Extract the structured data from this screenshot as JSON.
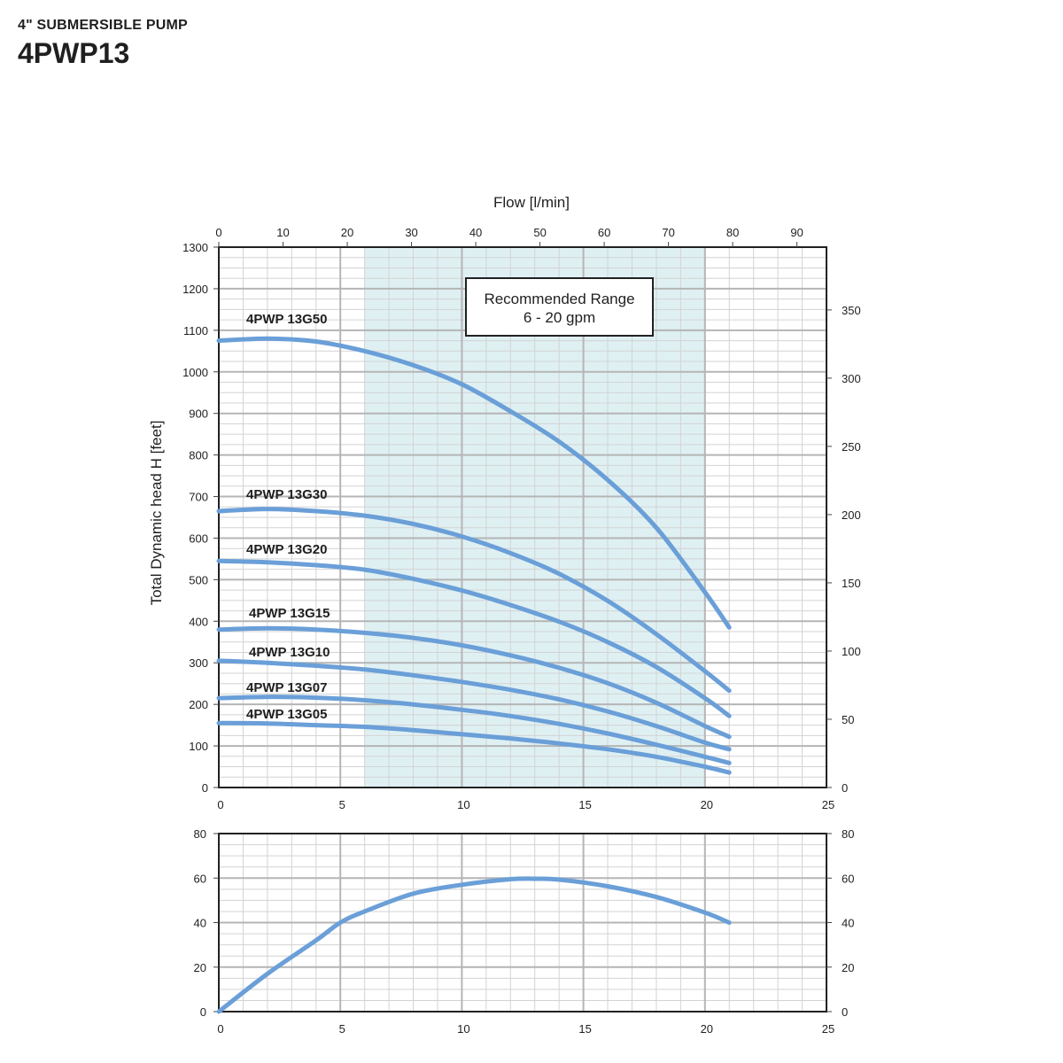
{
  "header": {
    "subtitle": "4\" SUBMERSIBLE PUMP",
    "title": "4PWP13"
  },
  "chart_data": [
    {
      "type": "line",
      "title": "",
      "xlabel": "",
      "ylabel": "Total Dynamic head H [feet]",
      "x2label": "Flow [l/min]",
      "xlim": [
        0,
        25
      ],
      "x_ticks": [
        0,
        5,
        10,
        15,
        20,
        25
      ],
      "ylim": [
        0,
        1300
      ],
      "y_ticks": [
        0,
        100,
        200,
        300,
        400,
        500,
        600,
        700,
        800,
        900,
        1000,
        1100,
        1200,
        1300
      ],
      "x2lim": [
        0,
        94.6
      ],
      "x2_ticks": [
        0,
        10,
        20,
        30,
        40,
        50,
        60,
        70,
        80,
        90
      ],
      "y2lim": [
        0,
        396
      ],
      "y2_ticks": [
        0,
        50,
        100,
        150,
        200,
        250,
        300,
        350
      ],
      "grid": true,
      "recommended_range": {
        "x_from": 6,
        "x_to": 20,
        "label_line1": "Recommended Range",
        "label_line2": "6 - 20 gpm",
        "fill": "#dff0f3"
      },
      "line_color": "#6a9fd8",
      "series": [
        {
          "name": "4PWP 13G50",
          "x": [
            0,
            2,
            4,
            6,
            8,
            10,
            12,
            14,
            16,
            18,
            20,
            21
          ],
          "y": [
            1075,
            1080,
            1073,
            1050,
            1016,
            970,
            905,
            832,
            740,
            625,
            470,
            385
          ]
        },
        {
          "name": "4PWP 13G30",
          "x": [
            0,
            2,
            4,
            6,
            8,
            10,
            12,
            14,
            16,
            18,
            20,
            21
          ],
          "y": [
            665,
            670,
            665,
            654,
            634,
            604,
            564,
            514,
            449,
            369,
            280,
            233
          ]
        },
        {
          "name": "4PWP 13G20",
          "x": [
            0,
            2,
            4,
            6,
            8,
            10,
            12,
            14,
            16,
            18,
            20,
            21
          ],
          "y": [
            545,
            542,
            535,
            524,
            502,
            474,
            439,
            399,
            350,
            290,
            215,
            172
          ]
        },
        {
          "name": "4PWP 13G15",
          "x": [
            0,
            2,
            4,
            6,
            8,
            10,
            12,
            14,
            16,
            18,
            20,
            21
          ],
          "y": [
            380,
            383,
            380,
            372,
            360,
            342,
            318,
            288,
            251,
            204,
            148,
            122
          ]
        },
        {
          "name": "4PWP 13G10",
          "x": [
            0,
            2,
            4,
            6,
            8,
            10,
            12,
            14,
            16,
            18,
            20,
            21
          ],
          "y": [
            305,
            300,
            293,
            284,
            270,
            254,
            235,
            212,
            183,
            148,
            108,
            92
          ]
        },
        {
          "name": "4PWP 13G07",
          "x": [
            0,
            2,
            4,
            6,
            8,
            10,
            12,
            14,
            16,
            18,
            20,
            21
          ],
          "y": [
            215,
            218,
            216,
            210,
            200,
            187,
            172,
            153,
            130,
            103,
            74,
            59
          ]
        },
        {
          "name": "4PWP 13G05",
          "x": [
            0,
            2,
            4,
            6,
            8,
            10,
            12,
            14,
            16,
            18,
            20,
            21
          ],
          "y": [
            155,
            154,
            150,
            146,
            138,
            128,
            118,
            106,
            92,
            74,
            50,
            36
          ]
        }
      ]
    },
    {
      "type": "line",
      "title": "",
      "xlabel": "",
      "ylabel": "",
      "xlim": [
        0,
        25
      ],
      "x_ticks": [
        0,
        5,
        10,
        15,
        20,
        25
      ],
      "ylim": [
        0,
        80
      ],
      "y_ticks": [
        0,
        20,
        40,
        60,
        80
      ],
      "y2_ticks": [
        0,
        20,
        40,
        60,
        80
      ],
      "grid": true,
      "line_color": "#6a9fd8",
      "series": [
        {
          "x": [
            0,
            2,
            4,
            5,
            6,
            8,
            10,
            12,
            13,
            14,
            16,
            18,
            20,
            21
          ],
          "y": [
            0,
            17,
            32,
            40,
            45,
            53,
            57,
            59.5,
            59.7,
            59.3,
            56.3,
            51.5,
            44.5,
            40
          ]
        }
      ]
    }
  ]
}
